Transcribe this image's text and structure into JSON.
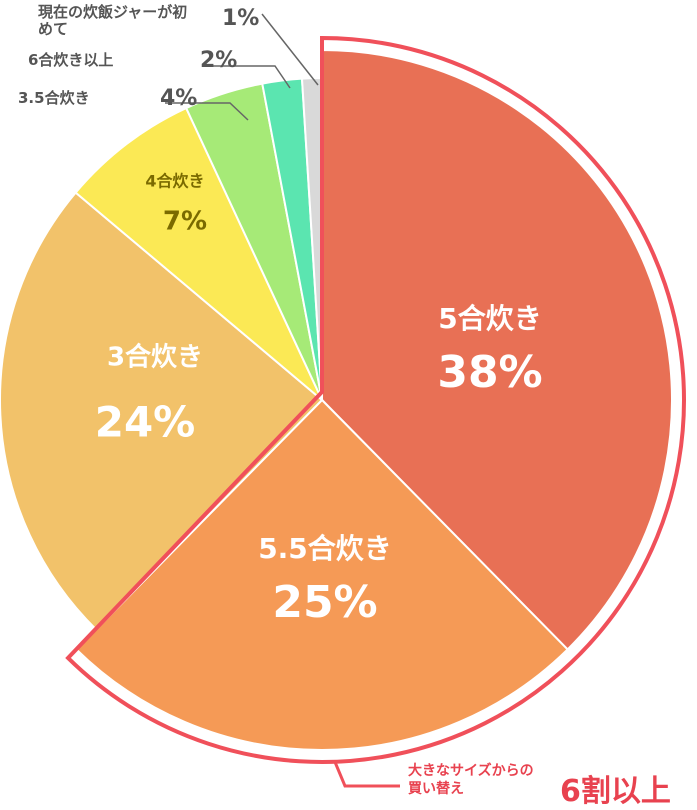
{
  "chart_data": {
    "type": "pie",
    "categories": [
      "5合炊き",
      "5.5合炊き",
      "3合炊き",
      "4合炊き",
      "3.5合炊き",
      "6合炊き以上",
      "現在の炊飯ジャーが初めて"
    ],
    "values": [
      38,
      25,
      24,
      7,
      4,
      2,
      1
    ],
    "value_labels": [
      "38%",
      "25%",
      "24%",
      "7%",
      "4%",
      "2%",
      "1%"
    ],
    "colors": [
      "#e87055",
      "#f59a56",
      "#f2c26a",
      "#fbe955",
      "#a6ea77",
      "#5be5b0",
      "#d9d9d9"
    ],
    "callout": {
      "text": "大きなサイズからの買い替え",
      "highlight": "6割以上"
    }
  }
}
